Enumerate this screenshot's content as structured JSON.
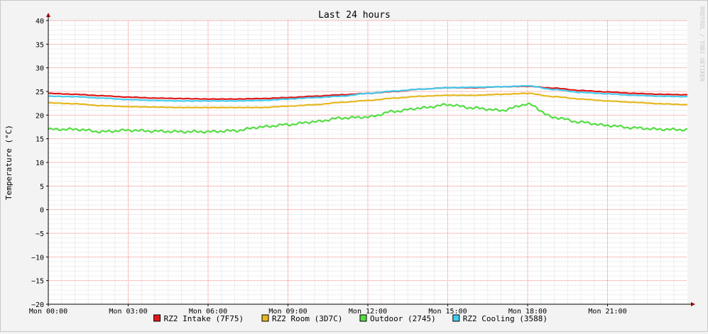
{
  "watermark": "RRDTOOL / TOBI OETIKER",
  "colors": {
    "canvas": "#ffffff",
    "minor_grid": "#dddddd",
    "major_grid": "#f08080",
    "axis": "#000000",
    "arrow": "#a00000",
    "text": "#000000"
  },
  "chart_data": {
    "type": "line",
    "title": "Last 24 hours",
    "ylabel": "Temperature (°C)",
    "xlabel": "",
    "ylim": [
      -20,
      40
    ],
    "xlim": [
      0,
      24
    ],
    "grid": true,
    "legend_position": "bottom",
    "y_ticks": [
      "40",
      "35",
      "30",
      "25",
      "20",
      "15",
      "10",
      "5",
      "0",
      "−5",
      "−10",
      "−15",
      "−20"
    ],
    "y_tick_values": [
      40,
      35,
      30,
      25,
      20,
      15,
      10,
      5,
      0,
      -5,
      -10,
      -15,
      -20
    ],
    "x_ticks": [
      "Mon 00:00",
      "Mon 03:00",
      "Mon 06:00",
      "Mon 09:00",
      "Mon 12:00",
      "Mon 15:00",
      "Mon 18:00",
      "Mon 21:00"
    ],
    "x_tick_values": [
      0,
      3,
      6,
      9,
      12,
      15,
      18,
      21
    ],
    "x": [
      0,
      1,
      2,
      3,
      4,
      5,
      6,
      7,
      8,
      9,
      10,
      11,
      12,
      13,
      14,
      15,
      16,
      17,
      18,
      19,
      20,
      21,
      22,
      23,
      24
    ],
    "series": [
      {
        "name": "RZ2 Intake (7F75)",
        "color": "#e01818",
        "values": [
          24.6,
          24.4,
          24.1,
          23.8,
          23.6,
          23.5,
          23.4,
          23.4,
          23.5,
          23.7,
          24.0,
          24.3,
          24.6,
          25.0,
          25.5,
          25.8,
          25.8,
          26.0,
          26.1,
          25.7,
          25.2,
          24.9,
          24.6,
          24.4,
          24.3
        ]
      },
      {
        "name": "RZ2 Room (3D7C)",
        "color": "#e6b820",
        "values": [
          22.6,
          22.4,
          22.0,
          21.8,
          21.7,
          21.6,
          21.6,
          21.6,
          21.6,
          21.9,
          22.2,
          22.7,
          23.1,
          23.6,
          24.0,
          24.2,
          24.2,
          24.4,
          24.6,
          23.9,
          23.4,
          23.0,
          22.7,
          22.4,
          22.2
        ]
      },
      {
        "name": "Outdoor (2745)",
        "color": "#55dd44",
        "values": [
          17.0,
          17.0,
          16.5,
          16.8,
          16.6,
          16.5,
          16.5,
          16.7,
          17.5,
          18.0,
          18.6,
          19.4,
          19.6,
          20.8,
          21.5,
          22.2,
          21.5,
          21.0,
          22.3,
          19.5,
          18.5,
          17.8,
          17.3,
          17.0,
          16.9
        ]
      },
      {
        "name": "RZ2 Cooling (3588)",
        "color": "#44ccee",
        "values": [
          24.0,
          23.9,
          23.6,
          23.3,
          23.1,
          23.0,
          23.0,
          23.0,
          23.1,
          23.4,
          23.7,
          24.0,
          24.6,
          25.1,
          25.5,
          25.8,
          25.9,
          26.0,
          26.2,
          25.4,
          24.8,
          24.5,
          24.2,
          24.0,
          23.9
        ]
      }
    ]
  }
}
